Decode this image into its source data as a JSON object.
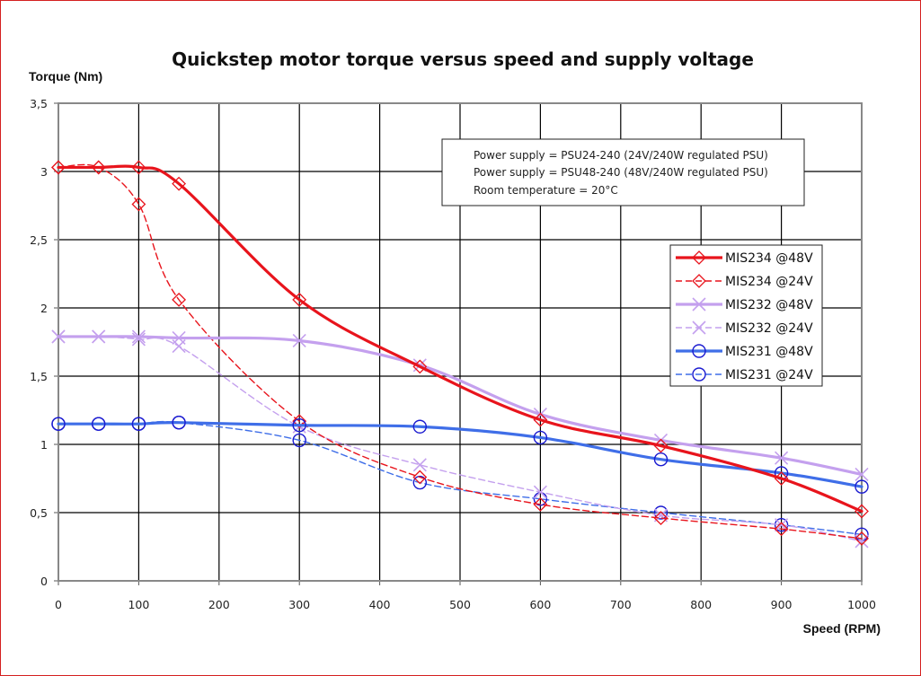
{
  "chart_data": {
    "type": "line",
    "title": "Quickstep motor torque versus speed and supply voltage",
    "xlabel": "Speed (RPM)",
    "ylabel": "Torque (Nm)",
    "xlim": [
      0,
      1000
    ],
    "ylim": [
      0,
      3.5
    ],
    "grid": true,
    "legend_position": "right",
    "x_ticks": [
      "0",
      "100",
      "200",
      "300",
      "400",
      "500",
      "600",
      "700",
      "800",
      "900",
      "1000"
    ],
    "x_tick_values": [
      0,
      100,
      200,
      300,
      400,
      500,
      600,
      700,
      800,
      900,
      1000
    ],
    "y_ticks": [
      "0",
      "0,5",
      "1",
      "1,5",
      "2",
      "2,5",
      "3",
      "3,5"
    ],
    "y_tick_values": [
      0,
      0.5,
      1,
      1.5,
      2,
      2.5,
      3,
      3.5
    ],
    "annotations": [
      "Power supply = PSU24-240 (24V/240W regulated PSU)",
      "Power supply = PSU48-240 (48V/240W regulated PSU)",
      "Room temperature = 20°C"
    ],
    "x": [
      0,
      50,
      100,
      150,
      300,
      450,
      600,
      750,
      900,
      1000
    ],
    "series": [
      {
        "name": "MIS234 @48V",
        "color": "#e8141c",
        "dashed": false,
        "marker": "diamond",
        "marker_color": "#e8141c",
        "values": [
          3.03,
          3.03,
          3.03,
          2.91,
          2.06,
          1.57,
          1.18,
          0.99,
          0.75,
          0.51
        ]
      },
      {
        "name": "MIS234 @24V",
        "color": "#e8141c",
        "dashed": true,
        "marker": "diamond",
        "marker_color": "#e8141c",
        "values": [
          3.03,
          3.03,
          2.76,
          2.06,
          1.17,
          0.76,
          0.56,
          0.46,
          0.38,
          0.31
        ]
      },
      {
        "name": "MIS232 @48V",
        "color": "#c4a0ee",
        "dashed": false,
        "marker": "x",
        "marker_color": "#c4a0ee",
        "values": [
          1.79,
          1.79,
          1.79,
          1.78,
          1.76,
          1.58,
          1.22,
          1.03,
          0.9,
          0.78
        ]
      },
      {
        "name": "MIS232 @24V",
        "color": "#c4a0ee",
        "dashed": true,
        "marker": "x",
        "marker_color": "#c4a0ee",
        "values": [
          1.79,
          1.79,
          1.77,
          1.72,
          1.13,
          0.85,
          0.65,
          0.48,
          0.41,
          0.29
        ]
      },
      {
        "name": "MIS231 @48V",
        "color": "#3f6ee8",
        "dashed": false,
        "marker": "circle",
        "marker_color": "#1a1ad0",
        "values": [
          1.15,
          1.15,
          1.15,
          1.16,
          1.14,
          1.13,
          1.05,
          0.89,
          0.79,
          0.69
        ]
      },
      {
        "name": "MIS231 @24V",
        "color": "#3f6ee8",
        "dashed": true,
        "marker": "circle",
        "marker_color": "#1a1ad0",
        "values": [
          1.15,
          1.15,
          1.15,
          1.16,
          1.03,
          0.72,
          0.6,
          0.5,
          0.41,
          0.34
        ]
      }
    ]
  }
}
